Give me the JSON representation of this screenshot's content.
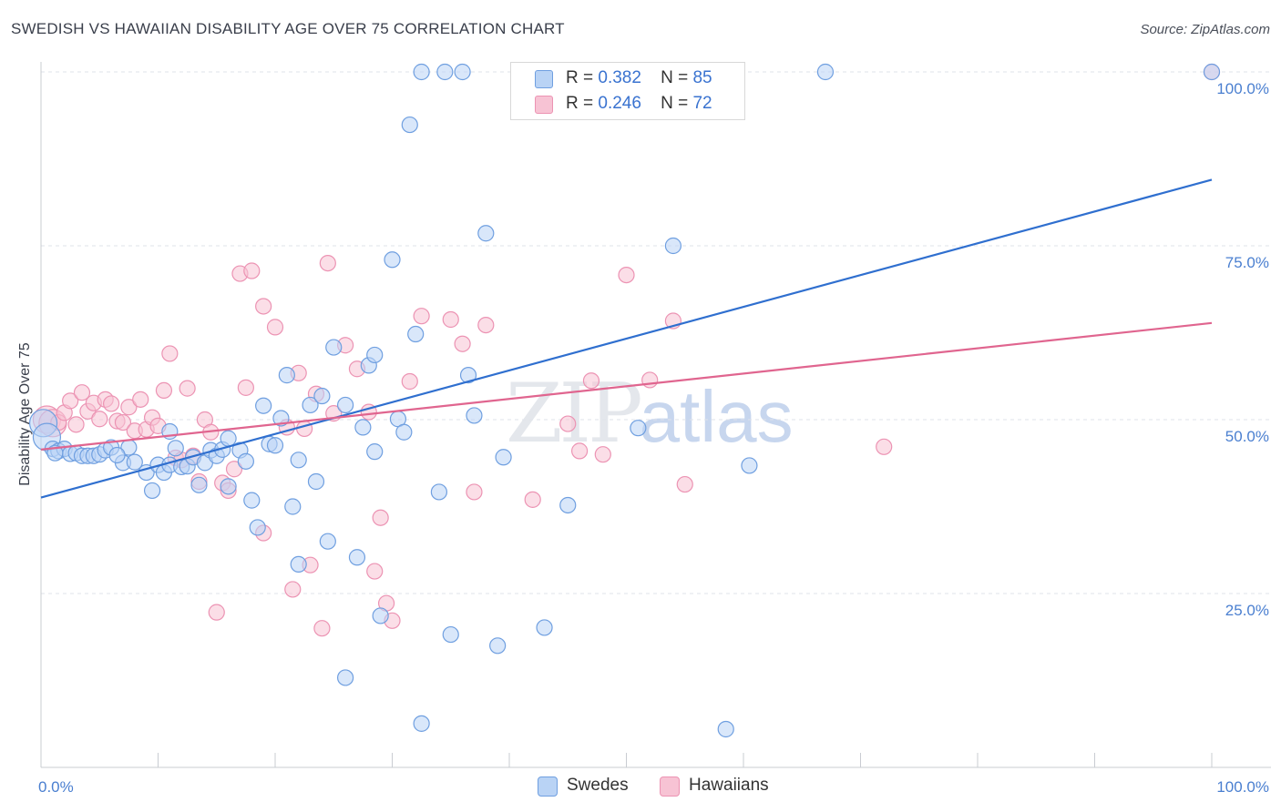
{
  "title": "SWEDISH VS HAWAIIAN DISABILITY AGE OVER 75 CORRELATION CHART",
  "source": "Source: ZipAtlas.com",
  "watermark": {
    "zip": "ZIP",
    "atlas": "atlas"
  },
  "legend_top": [
    {
      "r_label": "R =",
      "r_value": "0.382",
      "n_label": "N =",
      "n_value": "85"
    },
    {
      "r_label": "R =",
      "r_value": "0.246",
      "n_label": "N =",
      "n_value": "72"
    }
  ],
  "legend_bottom": [
    {
      "label": "Swedes"
    },
    {
      "label": "Hawaiians"
    }
  ],
  "colors": {
    "blue_fill": "#b9d3f5",
    "blue_stroke": "#6f9fe0",
    "blue_line": "#2f6fcf",
    "pink_fill": "#f7c3d4",
    "pink_stroke": "#ec93b3",
    "pink_line": "#e0658f",
    "grid": "#dfe3ea",
    "axis_text": "#4a7fd0"
  },
  "chart_data": {
    "type": "scatter",
    "title": "SWEDISH VS HAWAIIAN DISABILITY AGE OVER 75 CORRELATION CHART",
    "xlabel": "",
    "ylabel": "Disability Age Over 75",
    "xlim": [
      0,
      100
    ],
    "ylim": [
      0,
      104
    ],
    "x_tick_labels": [
      "0.0%",
      "100.0%"
    ],
    "y_ticks": [
      25,
      50,
      75,
      100
    ],
    "y_tick_labels": [
      "25.0%",
      "50.0%",
      "75.0%",
      "100.0%"
    ],
    "grid": true,
    "legend_position": "top-center",
    "series": [
      {
        "name": "Swedes",
        "r": 0.382,
        "n": 85,
        "trend": {
          "x": [
            0,
            100
          ],
          "y": [
            38.8,
            84.5
          ]
        },
        "points": [
          [
            0.2,
            49.5
          ],
          [
            0.5,
            47.5
          ],
          [
            1,
            45.8
          ],
          [
            1.5,
            45.5
          ],
          [
            2,
            45.8
          ],
          [
            2.5,
            45.1
          ],
          [
            3,
            45.2
          ],
          [
            3.5,
            44.8
          ],
          [
            4,
            44.8
          ],
          [
            4.5,
            44.8
          ],
          [
            5,
            45
          ],
          [
            5.5,
            45.6
          ],
          [
            6,
            46
          ],
          [
            7,
            43.8
          ],
          [
            7.5,
            46
          ],
          [
            8,
            43.9
          ],
          [
            9,
            42.4
          ],
          [
            9.5,
            39.8
          ],
          [
            10,
            43.5
          ],
          [
            10.5,
            42.4
          ],
          [
            11,
            43.5
          ],
          [
            11,
            48.3
          ],
          [
            11.5,
            45.9
          ],
          [
            12,
            43.2
          ],
          [
            12.5,
            43.3
          ],
          [
            13,
            44.6
          ],
          [
            13.5,
            40.6
          ],
          [
            14,
            43.8
          ],
          [
            14.5,
            45.6
          ],
          [
            15,
            44.8
          ],
          [
            15.5,
            45.7
          ],
          [
            16,
            47.3
          ],
          [
            16,
            40.4
          ],
          [
            17,
            45.6
          ],
          [
            17.5,
            44
          ],
          [
            18,
            38.4
          ],
          [
            18.5,
            34.5
          ],
          [
            19,
            52
          ],
          [
            19.5,
            46.5
          ],
          [
            20,
            46.3
          ],
          [
            20.5,
            50.2
          ],
          [
            21,
            56.4
          ],
          [
            21.5,
            37.5
          ],
          [
            22,
            44.2
          ],
          [
            22,
            29.2
          ],
          [
            23,
            52.1
          ],
          [
            23.5,
            41.1
          ],
          [
            24,
            53.4
          ],
          [
            24.5,
            32.5
          ],
          [
            25,
            60.4
          ],
          [
            26,
            12.9
          ],
          [
            26,
            52.1
          ],
          [
            27,
            30.2
          ],
          [
            27.5,
            48.9
          ],
          [
            28,
            57.8
          ],
          [
            28.5,
            45.4
          ],
          [
            28.5,
            59.3
          ],
          [
            29,
            21.8
          ],
          [
            30,
            73
          ],
          [
            30.5,
            50.1
          ],
          [
            31,
            48.2
          ],
          [
            31.5,
            92.4
          ],
          [
            32,
            62.3
          ],
          [
            32.5,
            6.3
          ],
          [
            32.5,
            100
          ],
          [
            34,
            39.6
          ],
          [
            34.5,
            100
          ],
          [
            35,
            19.1
          ],
          [
            36,
            100
          ],
          [
            36.5,
            56.4
          ],
          [
            37,
            50.6
          ],
          [
            38,
            76.8
          ],
          [
            39,
            17.5
          ],
          [
            39.5,
            44.6
          ],
          [
            43,
            20.1
          ],
          [
            45,
            37.7
          ],
          [
            51,
            48.8
          ],
          [
            54,
            75
          ],
          [
            54.5,
            100
          ],
          [
            58.5,
            5.5
          ],
          [
            60.5,
            43.4
          ],
          [
            67,
            100
          ],
          [
            100,
            100
          ],
          [
            1.2,
            45.2
          ],
          [
            6.5,
            44.9
          ]
        ]
      },
      {
        "name": "Hawaiians",
        "r": 0.246,
        "n": 72,
        "trend": {
          "x": [
            0,
            100
          ],
          "y": [
            45.7,
            63.9
          ]
        },
        "points": [
          [
            0.5,
            50
          ],
          [
            1,
            49.5
          ],
          [
            1.5,
            49.6
          ],
          [
            2,
            51
          ],
          [
            2.5,
            52.7
          ],
          [
            3,
            49.3
          ],
          [
            3.5,
            53.9
          ],
          [
            4,
            51.2
          ],
          [
            4.5,
            52.4
          ],
          [
            5,
            50.1
          ],
          [
            5.5,
            52.9
          ],
          [
            6,
            52.3
          ],
          [
            6.5,
            49.8
          ],
          [
            7,
            49.6
          ],
          [
            7.5,
            51.8
          ],
          [
            8,
            48.4
          ],
          [
            8.5,
            52.9
          ],
          [
            9,
            48.6
          ],
          [
            9.5,
            50.3
          ],
          [
            10,
            49.1
          ],
          [
            10.5,
            54.2
          ],
          [
            11,
            59.5
          ],
          [
            11.5,
            44.5
          ],
          [
            12,
            44.2
          ],
          [
            12.5,
            54.5
          ],
          [
            13,
            44.8
          ],
          [
            13.5,
            41.1
          ],
          [
            14,
            50
          ],
          [
            14.5,
            48.2
          ],
          [
            15,
            22.3
          ],
          [
            15.5,
            40.9
          ],
          [
            16,
            39.8
          ],
          [
            16.5,
            42.9
          ],
          [
            17,
            71
          ],
          [
            17.5,
            54.6
          ],
          [
            18,
            71.4
          ],
          [
            19,
            66.3
          ],
          [
            19,
            33.7
          ],
          [
            20,
            63.3
          ],
          [
            21,
            48.9
          ],
          [
            21.5,
            25.6
          ],
          [
            22,
            56.7
          ],
          [
            22.5,
            48.7
          ],
          [
            23,
            29.1
          ],
          [
            23.5,
            53.7
          ],
          [
            24,
            20
          ],
          [
            24.5,
            72.5
          ],
          [
            25,
            50.9
          ],
          [
            26,
            60.7
          ],
          [
            27,
            57.3
          ],
          [
            28,
            51.1
          ],
          [
            28.5,
            28.2
          ],
          [
            29,
            35.9
          ],
          [
            29.5,
            23.6
          ],
          [
            30,
            21.1
          ],
          [
            31.5,
            55.5
          ],
          [
            32.5,
            64.9
          ],
          [
            35,
            64.4
          ],
          [
            36,
            60.9
          ],
          [
            37,
            39.6
          ],
          [
            38,
            63.6
          ],
          [
            42,
            38.5
          ],
          [
            45,
            49.4
          ],
          [
            46,
            45.5
          ],
          [
            47,
            55.6
          ],
          [
            48,
            45
          ],
          [
            50,
            70.8
          ],
          [
            52,
            55.7
          ],
          [
            54,
            64.2
          ],
          [
            55,
            40.7
          ],
          [
            72,
            46.1
          ],
          [
            100,
            100
          ]
        ]
      }
    ]
  }
}
